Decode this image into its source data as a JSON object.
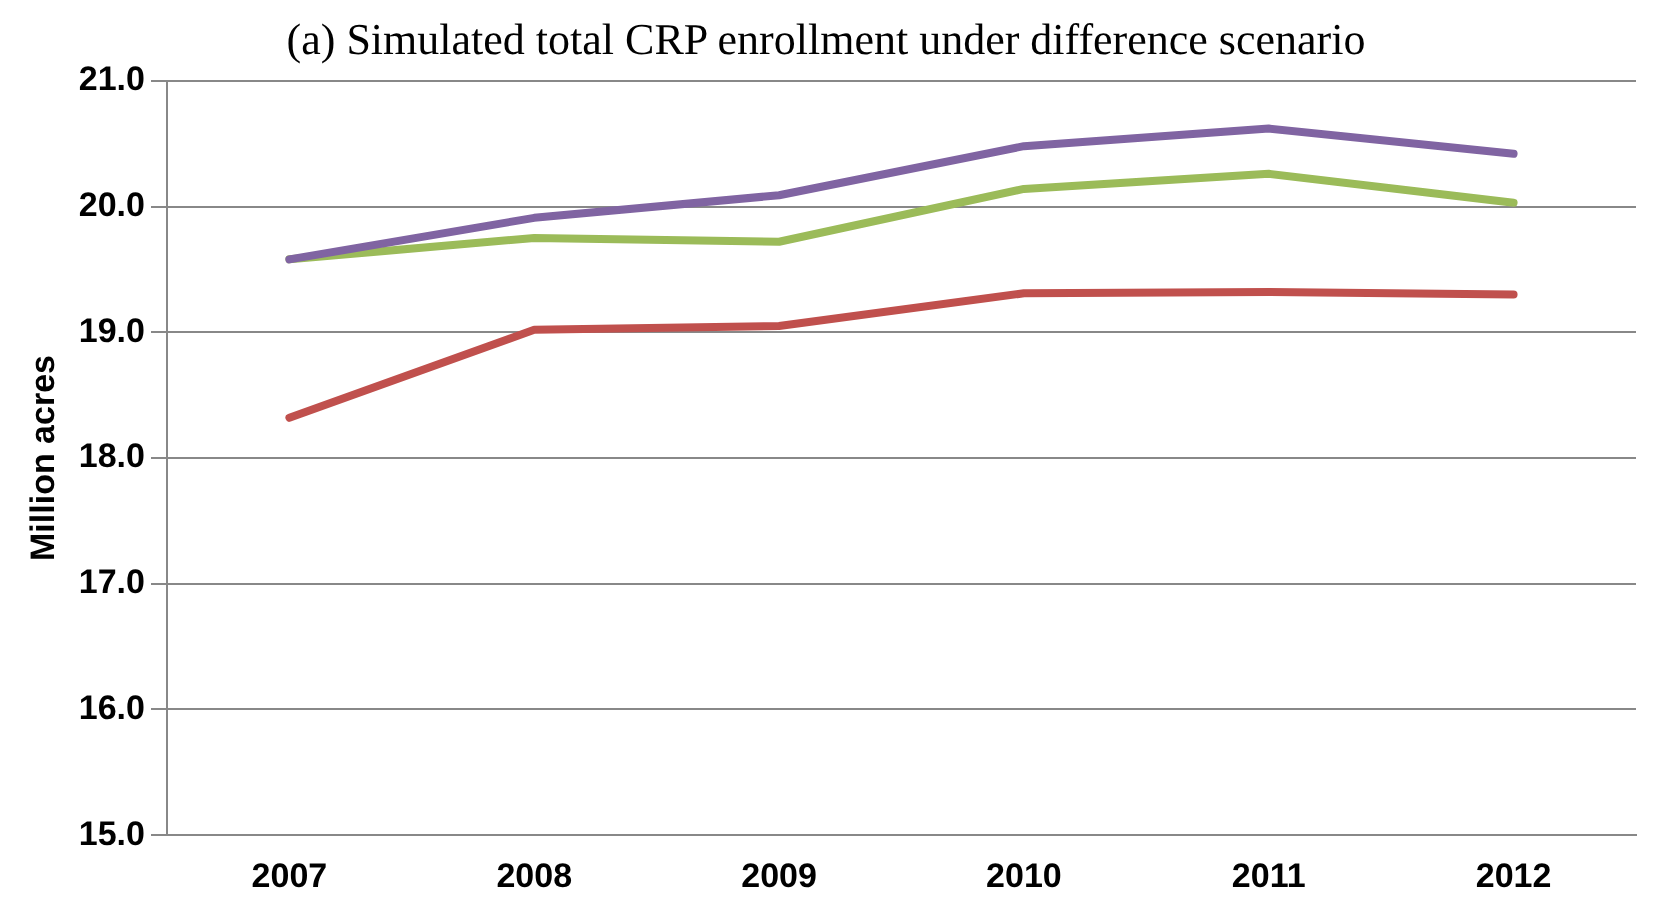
{
  "chart_data": {
    "type": "line",
    "title": "(a) Simulated total CRP enrollment under difference scenario",
    "ylabel": "Million acres",
    "categories": [
      "2007",
      "2008",
      "2009",
      "2010",
      "2011",
      "2012"
    ],
    "series": [
      {
        "color": "#8064a2",
        "values": [
          19.58,
          19.91,
          20.09,
          20.48,
          20.62,
          20.42
        ]
      },
      {
        "color": "#9bbb59",
        "values": [
          19.58,
          19.75,
          19.72,
          20.14,
          20.26,
          20.03
        ]
      },
      {
        "color": "#c0504d",
        "values": [
          18.32,
          19.02,
          19.05,
          19.31,
          19.32,
          19.3
        ]
      }
    ],
    "ylim": [
      15,
      21
    ],
    "yticks": [
      {
        "value": 15,
        "label": "15.0"
      },
      {
        "value": 16,
        "label": "16.0"
      },
      {
        "value": 17,
        "label": "17.0"
      },
      {
        "value": 18,
        "label": "18.0"
      },
      {
        "value": 19,
        "label": "19.0"
      },
      {
        "value": 20,
        "label": "20.0"
      },
      {
        "value": 21,
        "label": "21.0"
      }
    ],
    "grid": "y",
    "legend": false,
    "marker": "none",
    "line_style": "solid"
  }
}
